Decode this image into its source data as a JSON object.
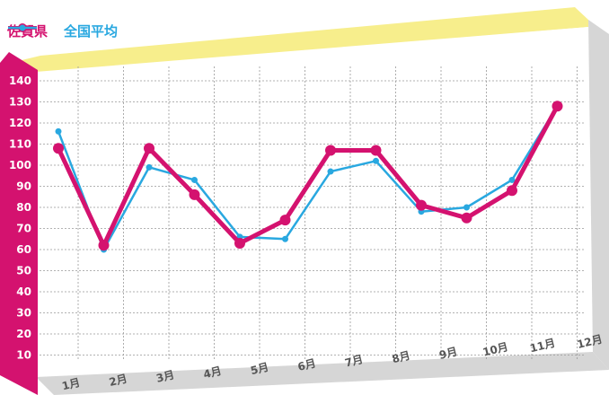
{
  "chart_data": {
    "type": "line",
    "categories": [
      "1月",
      "2月",
      "3月",
      "4月",
      "5月",
      "6月",
      "7月",
      "8月",
      "9月",
      "10月",
      "11月",
      "12月"
    ],
    "series": [
      {
        "name": "佐賀県",
        "color": "#d4126f",
        "values": [
          108,
          62,
          108,
          86,
          63,
          74,
          107,
          107,
          81,
          75,
          88,
          128
        ]
      },
      {
        "name": "全国平均",
        "color": "#29a8e0",
        "values": [
          116,
          60,
          99,
          93,
          66,
          65,
          97,
          102,
          78,
          80,
          93,
          128
        ]
      }
    ],
    "yticks": [
      10,
      20,
      30,
      40,
      50,
      60,
      70,
      80,
      90,
      100,
      110,
      120,
      130,
      140
    ],
    "ylim": [
      0,
      150
    ],
    "grid": true,
    "legend_position": "top-left",
    "colors": {
      "top_band": "#f7ee8c",
      "axis_band": "#d4126f",
      "side_band": "#d6d6d6"
    }
  }
}
